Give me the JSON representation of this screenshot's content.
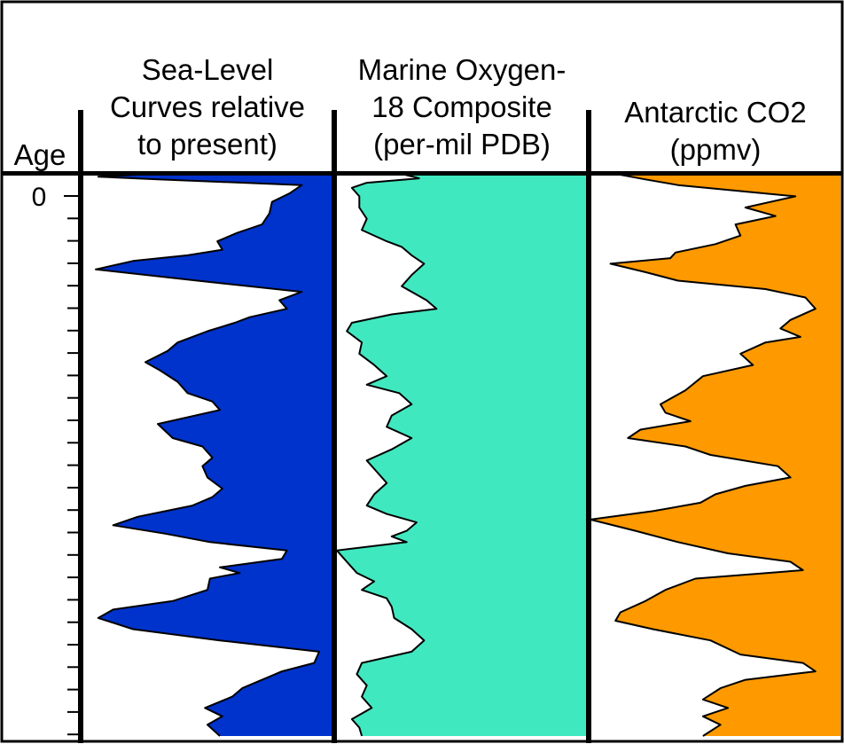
{
  "headers": {
    "age": "Age",
    "sea_level": [
      "Sea-Level",
      "Curves relative",
      "to present)"
    ],
    "oxygen": [
      "Marine Oxygen-",
      "18 Composite",
      "(per-mil PDB)"
    ],
    "co2": [
      "Antarctic CO2",
      "(ppmv)"
    ]
  },
  "colors": {
    "sea_level_fill": "#0033cc",
    "oxygen_fill": "#40e8c0",
    "co2_fill": "#ff9900",
    "line": "#000000",
    "background": "#ffffff"
  },
  "chart_data": {
    "type": "area",
    "y_axis": {
      "label": "Age",
      "tick_labels": [
        "0"
      ],
      "minor_tick_count": 25,
      "direction": "downward"
    },
    "panels": [
      {
        "name": "Sea-Level Curves relative to present)",
        "fill": "#0033cc",
        "fill_side": "right",
        "x_range": [
          0,
          1
        ],
        "ages": [
          0,
          0.005,
          0.01,
          0.02,
          0.035,
          0.05,
          0.07,
          0.09,
          0.105,
          0.12,
          0.135,
          0.145,
          0.155,
          0.17,
          0.19,
          0.21,
          0.225,
          0.24,
          0.255,
          0.265,
          0.28,
          0.3,
          0.315,
          0.335,
          0.35,
          0.37,
          0.39,
          0.405,
          0.42,
          0.445,
          0.47,
          0.485,
          0.505,
          0.52,
          0.54,
          0.56,
          0.575,
          0.59,
          0.61,
          0.625,
          0.64,
          0.655,
          0.67,
          0.685,
          0.7,
          0.71,
          0.72,
          0.74,
          0.76,
          0.775,
          0.79,
          0.81,
          0.83,
          0.85,
          0.87,
          0.885,
          0.9,
          0.915,
          0.93,
          0.95,
          0.965,
          0.98,
          1.0
        ],
        "values": [
          0.3,
          0.06,
          0.3,
          0.88,
          0.83,
          0.76,
          0.75,
          0.72,
          0.62,
          0.54,
          0.56,
          0.42,
          0.2,
          0.05,
          0.46,
          0.88,
          0.79,
          0.82,
          0.67,
          0.61,
          0.5,
          0.38,
          0.34,
          0.25,
          0.31,
          0.38,
          0.42,
          0.52,
          0.55,
          0.3,
          0.36,
          0.48,
          0.52,
          0.48,
          0.5,
          0.56,
          0.52,
          0.44,
          0.22,
          0.12,
          0.33,
          0.51,
          0.82,
          0.8,
          0.55,
          0.63,
          0.51,
          0.5,
          0.36,
          0.12,
          0.06,
          0.2,
          0.55,
          0.95,
          0.93,
          0.8,
          0.72,
          0.64,
          0.6,
          0.49,
          0.56,
          0.5,
          0.55
        ]
      },
      {
        "name": "Marine Oxygen-18 Composite (per-mil PDB)",
        "fill": "#40e8c0",
        "fill_side": "right",
        "x_range": [
          0,
          1
        ],
        "ages": [
          0,
          0.008,
          0.016,
          0.025,
          0.04,
          0.06,
          0.08,
          0.1,
          0.12,
          0.13,
          0.145,
          0.16,
          0.18,
          0.2,
          0.225,
          0.24,
          0.25,
          0.265,
          0.28,
          0.3,
          0.32,
          0.34,
          0.36,
          0.375,
          0.39,
          0.41,
          0.43,
          0.45,
          0.47,
          0.49,
          0.51,
          0.53,
          0.55,
          0.57,
          0.59,
          0.605,
          0.62,
          0.635,
          0.645,
          0.655,
          0.67,
          0.69,
          0.71,
          0.725,
          0.74,
          0.755,
          0.77,
          0.79,
          0.81,
          0.83,
          0.85,
          0.87,
          0.89,
          0.91,
          0.93,
          0.95,
          0.97,
          0.985,
          1.0
        ],
        "values": [
          0.26,
          0.33,
          0.12,
          0.06,
          0.09,
          0.09,
          0.12,
          0.1,
          0.2,
          0.26,
          0.3,
          0.35,
          0.3,
          0.26,
          0.36,
          0.4,
          0.22,
          0.06,
          0.04,
          0.1,
          0.09,
          0.15,
          0.2,
          0.12,
          0.25,
          0.3,
          0.22,
          0.2,
          0.3,
          0.22,
          0.12,
          0.16,
          0.2,
          0.15,
          0.12,
          0.2,
          0.32,
          0.28,
          0.22,
          0.28,
          0.0,
          0.04,
          0.08,
          0.15,
          0.1,
          0.2,
          0.22,
          0.23,
          0.3,
          0.35,
          0.3,
          0.1,
          0.08,
          0.12,
          0.1,
          0.14,
          0.06,
          0.09,
          0.1
        ]
      },
      {
        "name": "Antarctic CO2 (ppmv)",
        "fill": "#ff9900",
        "fill_side": "right",
        "x_range": [
          0,
          1
        ],
        "ages": [
          0,
          0.01,
          0.02,
          0.04,
          0.06,
          0.075,
          0.09,
          0.11,
          0.125,
          0.14,
          0.15,
          0.16,
          0.175,
          0.19,
          0.205,
          0.22,
          0.24,
          0.26,
          0.275,
          0.29,
          0.3,
          0.32,
          0.34,
          0.36,
          0.385,
          0.41,
          0.425,
          0.44,
          0.455,
          0.47,
          0.485,
          0.5,
          0.52,
          0.54,
          0.555,
          0.57,
          0.585,
          0.6,
          0.615,
          0.635,
          0.655,
          0.675,
          0.69,
          0.705,
          0.72,
          0.74,
          0.76,
          0.78,
          0.795,
          0.81,
          0.83,
          0.855,
          0.87,
          0.885,
          0.9,
          0.915,
          0.935,
          0.95,
          0.965,
          0.98,
          1.0
        ],
        "values": [
          0.1,
          0.22,
          0.35,
          0.82,
          0.62,
          0.74,
          0.58,
          0.6,
          0.5,
          0.34,
          0.32,
          0.08,
          0.22,
          0.35,
          0.7,
          0.86,
          0.9,
          0.8,
          0.76,
          0.84,
          0.7,
          0.6,
          0.65,
          0.45,
          0.38,
          0.28,
          0.3,
          0.4,
          0.2,
          0.15,
          0.38,
          0.48,
          0.75,
          0.8,
          0.62,
          0.5,
          0.44,
          0.25,
          0.0,
          0.18,
          0.35,
          0.55,
          0.8,
          0.85,
          0.42,
          0.3,
          0.22,
          0.12,
          0.1,
          0.25,
          0.48,
          0.6,
          0.85,
          0.9,
          0.62,
          0.52,
          0.45,
          0.55,
          0.45,
          0.52,
          0.45
        ]
      }
    ]
  }
}
